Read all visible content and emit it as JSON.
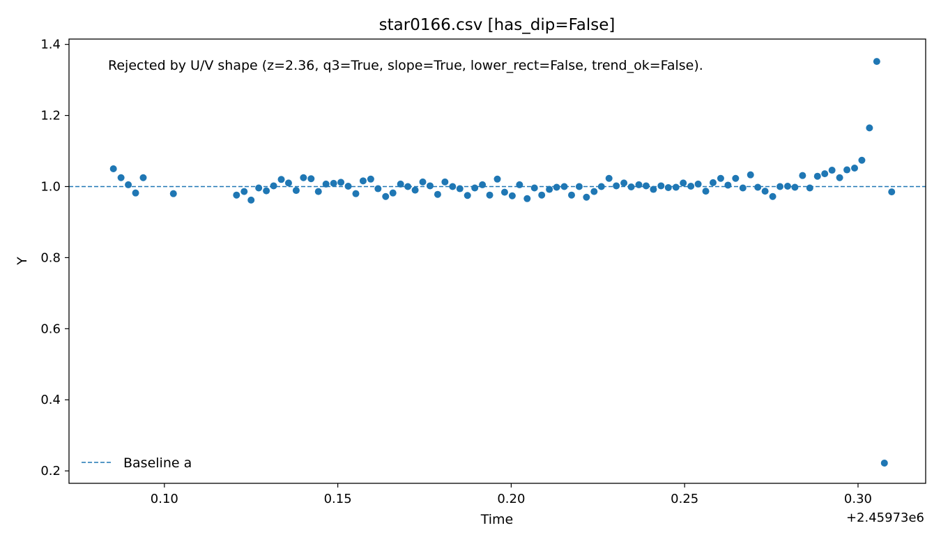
{
  "chart_data": {
    "type": "scatter",
    "title": "star0166.csv [has_dip=False]",
    "xlabel": "Time",
    "ylabel": "Y",
    "x_offset_label": "+2.45973e6",
    "xlim": [
      0.0725,
      0.3195
    ],
    "ylim": [
      0.165,
      1.415
    ],
    "xticks": [
      0.1,
      0.15,
      0.2,
      0.25,
      0.3
    ],
    "xtick_labels": [
      "0.10",
      "0.15",
      "0.20",
      "0.25",
      "0.30"
    ],
    "yticks": [
      0.2,
      0.4,
      0.6,
      0.8,
      1.0,
      1.2,
      1.4
    ],
    "ytick_labels": [
      "0.2",
      "0.4",
      "0.6",
      "0.8",
      "1.0",
      "1.2",
      "1.4"
    ],
    "grid": false,
    "legend_position": "lower-left",
    "annotation": "Rejected by U/V shape (z=2.36, q3=True, slope=True, lower_rect=False, trend_ok=False).",
    "baseline": {
      "name": "Baseline a",
      "y": 1.0,
      "style": "dashed",
      "color": "#1f77b4"
    },
    "series": [
      {
        "color": "#1f77b4",
        "points": [
          [
            0.0853,
            1.05
          ],
          [
            0.0875,
            1.025
          ],
          [
            0.0896,
            1.005
          ],
          [
            0.0917,
            0.982
          ],
          [
            0.0939,
            1.025
          ],
          [
            0.1026,
            0.98
          ],
          [
            0.1208,
            0.976
          ],
          [
            0.123,
            0.986
          ],
          [
            0.125,
            0.962
          ],
          [
            0.1272,
            0.996
          ],
          [
            0.1294,
            0.988
          ],
          [
            0.1315,
            1.002
          ],
          [
            0.1337,
            1.02
          ],
          [
            0.1358,
            1.01
          ],
          [
            0.138,
            0.989
          ],
          [
            0.1401,
            1.025
          ],
          [
            0.1423,
            1.022
          ],
          [
            0.1444,
            0.986
          ],
          [
            0.1466,
            1.007
          ],
          [
            0.1488,
            1.009
          ],
          [
            0.1509,
            1.012
          ],
          [
            0.153,
            1.001
          ],
          [
            0.1552,
            0.98
          ],
          [
            0.1573,
            1.016
          ],
          [
            0.1595,
            1.021
          ],
          [
            0.1616,
            0.994
          ],
          [
            0.1638,
            0.972
          ],
          [
            0.1659,
            0.982
          ],
          [
            0.1681,
            1.007
          ],
          [
            0.1702,
            1.0
          ],
          [
            0.1723,
            0.99
          ],
          [
            0.1745,
            1.013
          ],
          [
            0.1766,
            1.002
          ],
          [
            0.1788,
            0.978
          ],
          [
            0.1809,
            1.013
          ],
          [
            0.1831,
            1.0
          ],
          [
            0.1852,
            0.994
          ],
          [
            0.1874,
            0.975
          ],
          [
            0.1895,
            0.996
          ],
          [
            0.1917,
            1.005
          ],
          [
            0.1938,
            0.976
          ],
          [
            0.196,
            1.021
          ],
          [
            0.1981,
            0.984
          ],
          [
            0.2003,
            0.974
          ],
          [
            0.2024,
            1.005
          ],
          [
            0.2046,
            0.966
          ],
          [
            0.2067,
            0.996
          ],
          [
            0.2088,
            0.976
          ],
          [
            0.211,
            0.992
          ],
          [
            0.2131,
            0.998
          ],
          [
            0.2153,
            1.0
          ],
          [
            0.2174,
            0.976
          ],
          [
            0.2196,
            1.0
          ],
          [
            0.2217,
            0.97
          ],
          [
            0.2239,
            0.986
          ],
          [
            0.226,
            1.0
          ],
          [
            0.2282,
            1.023
          ],
          [
            0.2303,
            1.002
          ],
          [
            0.2325,
            1.01
          ],
          [
            0.2346,
            0.999
          ],
          [
            0.2368,
            1.005
          ],
          [
            0.2389,
            1.002
          ],
          [
            0.241,
            0.992
          ],
          [
            0.2432,
            1.002
          ],
          [
            0.2453,
            0.997
          ],
          [
            0.2475,
            0.998
          ],
          [
            0.2496,
            1.01
          ],
          [
            0.2518,
            1.001
          ],
          [
            0.2539,
            1.007
          ],
          [
            0.2561,
            0.987
          ],
          [
            0.2582,
            1.011
          ],
          [
            0.2604,
            1.023
          ],
          [
            0.2625,
            1.004
          ],
          [
            0.2647,
            1.023
          ],
          [
            0.2668,
            0.996
          ],
          [
            0.269,
            1.033
          ],
          [
            0.2711,
            0.998
          ],
          [
            0.2732,
            0.987
          ],
          [
            0.2754,
            0.972
          ],
          [
            0.2775,
            1.0
          ],
          [
            0.2797,
            1.001
          ],
          [
            0.2818,
            0.998
          ],
          [
            0.284,
            1.031
          ],
          [
            0.2861,
            0.996
          ],
          [
            0.2883,
            1.029
          ],
          [
            0.2904,
            1.036
          ],
          [
            0.2925,
            1.046
          ],
          [
            0.2947,
            1.025
          ],
          [
            0.2968,
            1.047
          ],
          [
            0.299,
            1.052
          ],
          [
            0.3011,
            1.074
          ],
          [
            0.3033,
            1.165
          ],
          [
            0.3054,
            1.352
          ],
          [
            0.3076,
            0.222
          ],
          [
            0.3097,
            0.985
          ]
        ]
      }
    ]
  }
}
